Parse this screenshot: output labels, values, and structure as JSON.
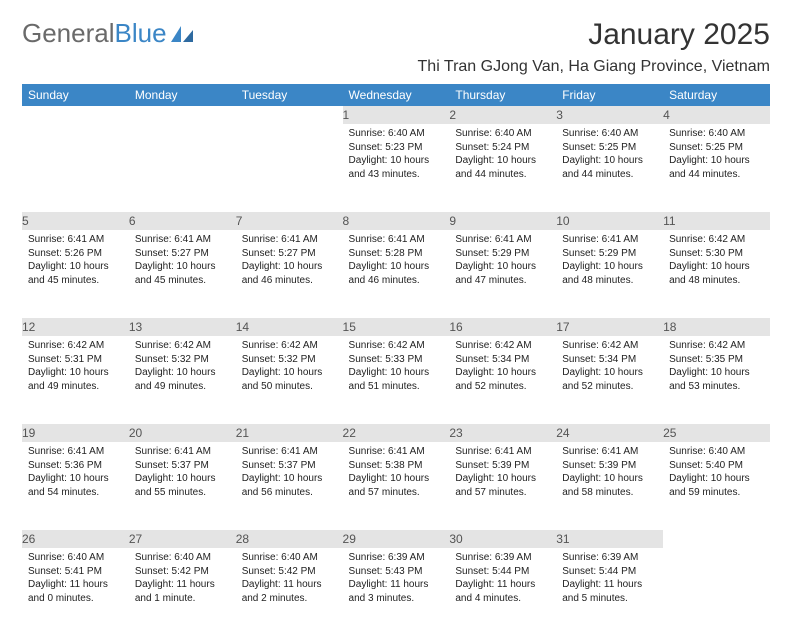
{
  "logo": {
    "text1": "General",
    "text2": "Blue"
  },
  "title": "January 2025",
  "location": "Thi Tran GJong Van, Ha Giang Province, Vietnam",
  "weekdays": [
    "Sunday",
    "Monday",
    "Tuesday",
    "Wednesday",
    "Thursday",
    "Friday",
    "Saturday"
  ],
  "colors": {
    "header_bg": "#3b86c6",
    "header_text": "#ffffff",
    "daynum_bg": "#e4e4e4",
    "daynum_text": "#545454",
    "body_text": "#222222"
  },
  "weeks": [
    [
      {
        "n": "",
        "sunrise": "",
        "sunset": "",
        "daylight": ""
      },
      {
        "n": "",
        "sunrise": "",
        "sunset": "",
        "daylight": ""
      },
      {
        "n": "",
        "sunrise": "",
        "sunset": "",
        "daylight": ""
      },
      {
        "n": "1",
        "sunrise": "Sunrise: 6:40 AM",
        "sunset": "Sunset: 5:23 PM",
        "daylight": "Daylight: 10 hours and 43 minutes."
      },
      {
        "n": "2",
        "sunrise": "Sunrise: 6:40 AM",
        "sunset": "Sunset: 5:24 PM",
        "daylight": "Daylight: 10 hours and 44 minutes."
      },
      {
        "n": "3",
        "sunrise": "Sunrise: 6:40 AM",
        "sunset": "Sunset: 5:25 PM",
        "daylight": "Daylight: 10 hours and 44 minutes."
      },
      {
        "n": "4",
        "sunrise": "Sunrise: 6:40 AM",
        "sunset": "Sunset: 5:25 PM",
        "daylight": "Daylight: 10 hours and 44 minutes."
      }
    ],
    [
      {
        "n": "5",
        "sunrise": "Sunrise: 6:41 AM",
        "sunset": "Sunset: 5:26 PM",
        "daylight": "Daylight: 10 hours and 45 minutes."
      },
      {
        "n": "6",
        "sunrise": "Sunrise: 6:41 AM",
        "sunset": "Sunset: 5:27 PM",
        "daylight": "Daylight: 10 hours and 45 minutes."
      },
      {
        "n": "7",
        "sunrise": "Sunrise: 6:41 AM",
        "sunset": "Sunset: 5:27 PM",
        "daylight": "Daylight: 10 hours and 46 minutes."
      },
      {
        "n": "8",
        "sunrise": "Sunrise: 6:41 AM",
        "sunset": "Sunset: 5:28 PM",
        "daylight": "Daylight: 10 hours and 46 minutes."
      },
      {
        "n": "9",
        "sunrise": "Sunrise: 6:41 AM",
        "sunset": "Sunset: 5:29 PM",
        "daylight": "Daylight: 10 hours and 47 minutes."
      },
      {
        "n": "10",
        "sunrise": "Sunrise: 6:41 AM",
        "sunset": "Sunset: 5:29 PM",
        "daylight": "Daylight: 10 hours and 48 minutes."
      },
      {
        "n": "11",
        "sunrise": "Sunrise: 6:42 AM",
        "sunset": "Sunset: 5:30 PM",
        "daylight": "Daylight: 10 hours and 48 minutes."
      }
    ],
    [
      {
        "n": "12",
        "sunrise": "Sunrise: 6:42 AM",
        "sunset": "Sunset: 5:31 PM",
        "daylight": "Daylight: 10 hours and 49 minutes."
      },
      {
        "n": "13",
        "sunrise": "Sunrise: 6:42 AM",
        "sunset": "Sunset: 5:32 PM",
        "daylight": "Daylight: 10 hours and 49 minutes."
      },
      {
        "n": "14",
        "sunrise": "Sunrise: 6:42 AM",
        "sunset": "Sunset: 5:32 PM",
        "daylight": "Daylight: 10 hours and 50 minutes."
      },
      {
        "n": "15",
        "sunrise": "Sunrise: 6:42 AM",
        "sunset": "Sunset: 5:33 PM",
        "daylight": "Daylight: 10 hours and 51 minutes."
      },
      {
        "n": "16",
        "sunrise": "Sunrise: 6:42 AM",
        "sunset": "Sunset: 5:34 PM",
        "daylight": "Daylight: 10 hours and 52 minutes."
      },
      {
        "n": "17",
        "sunrise": "Sunrise: 6:42 AM",
        "sunset": "Sunset: 5:34 PM",
        "daylight": "Daylight: 10 hours and 52 minutes."
      },
      {
        "n": "18",
        "sunrise": "Sunrise: 6:42 AM",
        "sunset": "Sunset: 5:35 PM",
        "daylight": "Daylight: 10 hours and 53 minutes."
      }
    ],
    [
      {
        "n": "19",
        "sunrise": "Sunrise: 6:41 AM",
        "sunset": "Sunset: 5:36 PM",
        "daylight": "Daylight: 10 hours and 54 minutes."
      },
      {
        "n": "20",
        "sunrise": "Sunrise: 6:41 AM",
        "sunset": "Sunset: 5:37 PM",
        "daylight": "Daylight: 10 hours and 55 minutes."
      },
      {
        "n": "21",
        "sunrise": "Sunrise: 6:41 AM",
        "sunset": "Sunset: 5:37 PM",
        "daylight": "Daylight: 10 hours and 56 minutes."
      },
      {
        "n": "22",
        "sunrise": "Sunrise: 6:41 AM",
        "sunset": "Sunset: 5:38 PM",
        "daylight": "Daylight: 10 hours and 57 minutes."
      },
      {
        "n": "23",
        "sunrise": "Sunrise: 6:41 AM",
        "sunset": "Sunset: 5:39 PM",
        "daylight": "Daylight: 10 hours and 57 minutes."
      },
      {
        "n": "24",
        "sunrise": "Sunrise: 6:41 AM",
        "sunset": "Sunset: 5:39 PM",
        "daylight": "Daylight: 10 hours and 58 minutes."
      },
      {
        "n": "25",
        "sunrise": "Sunrise: 6:40 AM",
        "sunset": "Sunset: 5:40 PM",
        "daylight": "Daylight: 10 hours and 59 minutes."
      }
    ],
    [
      {
        "n": "26",
        "sunrise": "Sunrise: 6:40 AM",
        "sunset": "Sunset: 5:41 PM",
        "daylight": "Daylight: 11 hours and 0 minutes."
      },
      {
        "n": "27",
        "sunrise": "Sunrise: 6:40 AM",
        "sunset": "Sunset: 5:42 PM",
        "daylight": "Daylight: 11 hours and 1 minute."
      },
      {
        "n": "28",
        "sunrise": "Sunrise: 6:40 AM",
        "sunset": "Sunset: 5:42 PM",
        "daylight": "Daylight: 11 hours and 2 minutes."
      },
      {
        "n": "29",
        "sunrise": "Sunrise: 6:39 AM",
        "sunset": "Sunset: 5:43 PM",
        "daylight": "Daylight: 11 hours and 3 minutes."
      },
      {
        "n": "30",
        "sunrise": "Sunrise: 6:39 AM",
        "sunset": "Sunset: 5:44 PM",
        "daylight": "Daylight: 11 hours and 4 minutes."
      },
      {
        "n": "31",
        "sunrise": "Sunrise: 6:39 AM",
        "sunset": "Sunset: 5:44 PM",
        "daylight": "Daylight: 11 hours and 5 minutes."
      },
      {
        "n": "",
        "sunrise": "",
        "sunset": "",
        "daylight": ""
      }
    ]
  ]
}
